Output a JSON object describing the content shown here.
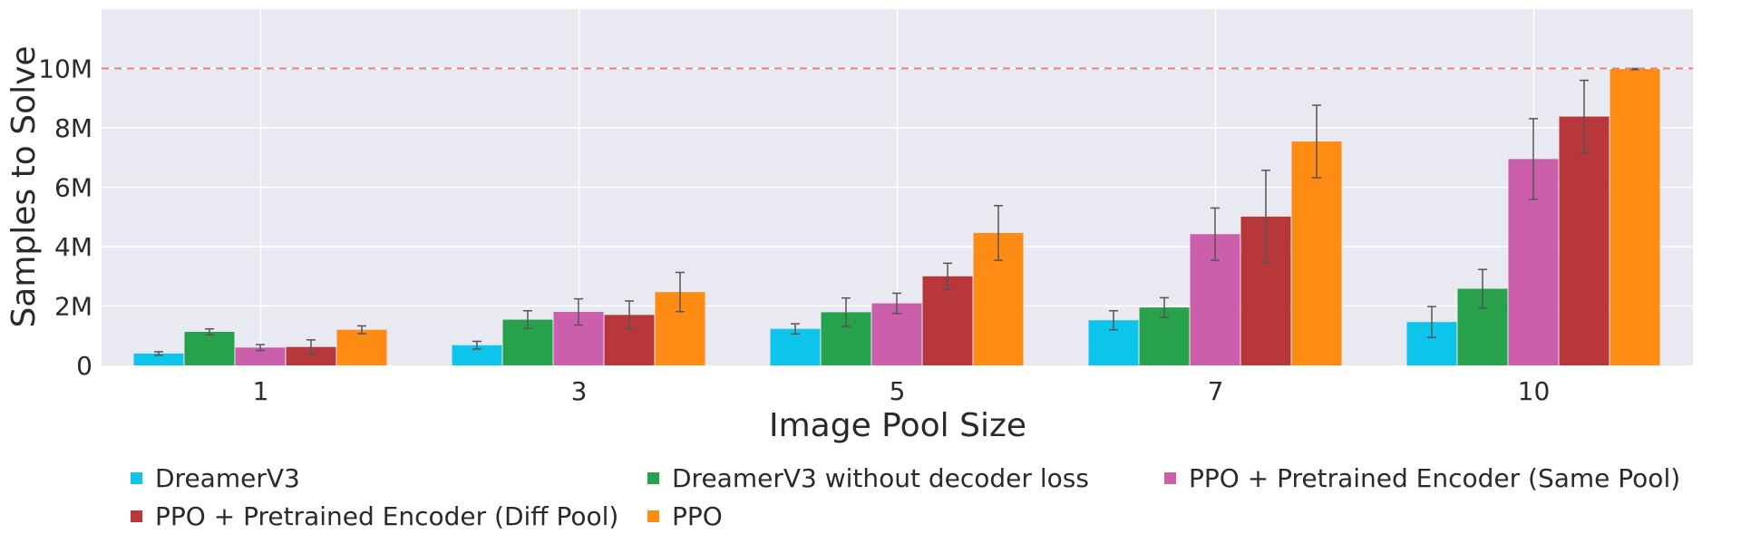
{
  "chart_data": {
    "type": "bar",
    "xlabel": "Image Pool Size",
    "ylabel": "Samples to Solve",
    "categories": [
      "1",
      "3",
      "5",
      "7",
      "10"
    ],
    "ylim": [
      0,
      12000000
    ],
    "yticks": [
      0,
      2000000,
      4000000,
      6000000,
      8000000,
      10000000
    ],
    "ytick_labels": [
      "0",
      "2M",
      "4M",
      "6M",
      "8M",
      "10M"
    ],
    "grid": true,
    "background": "#e9e9f1",
    "reference_line": {
      "y": 10000000,
      "style": "dashed",
      "color": "#f08080"
    },
    "legend_position": "bottom",
    "series": [
      {
        "name": "DreamerV3",
        "color": "#0dc5ea",
        "values": [
          400000,
          680000,
          1230000,
          1520000,
          1460000
        ],
        "errors": [
          60000,
          130000,
          170000,
          320000,
          520000
        ]
      },
      {
        "name": "DreamerV3 without decoder loss",
        "color": "#27a24b",
        "values": [
          1130000,
          1540000,
          1790000,
          1950000,
          2580000
        ],
        "errors": [
          100000,
          300000,
          480000,
          330000,
          650000
        ]
      },
      {
        "name": "PPO + Pretrained Encoder (Same Pool)",
        "color": "#cc5fab",
        "values": [
          600000,
          1800000,
          2090000,
          4420000,
          6950000
        ],
        "errors": [
          100000,
          440000,
          340000,
          880000,
          1360000
        ]
      },
      {
        "name": "PPO + Pretrained Encoder (Diff Pool)",
        "color": "#b8373a",
        "values": [
          620000,
          1700000,
          3000000,
          5010000,
          8380000
        ],
        "errors": [
          240000,
          470000,
          440000,
          1560000,
          1220000
        ]
      },
      {
        "name": "PPO",
        "color": "#fe8b13",
        "values": [
          1200000,
          2470000,
          4460000,
          7540000,
          9980000
        ],
        "errors": [
          130000,
          660000,
          920000,
          1220000,
          20000
        ]
      }
    ]
  }
}
